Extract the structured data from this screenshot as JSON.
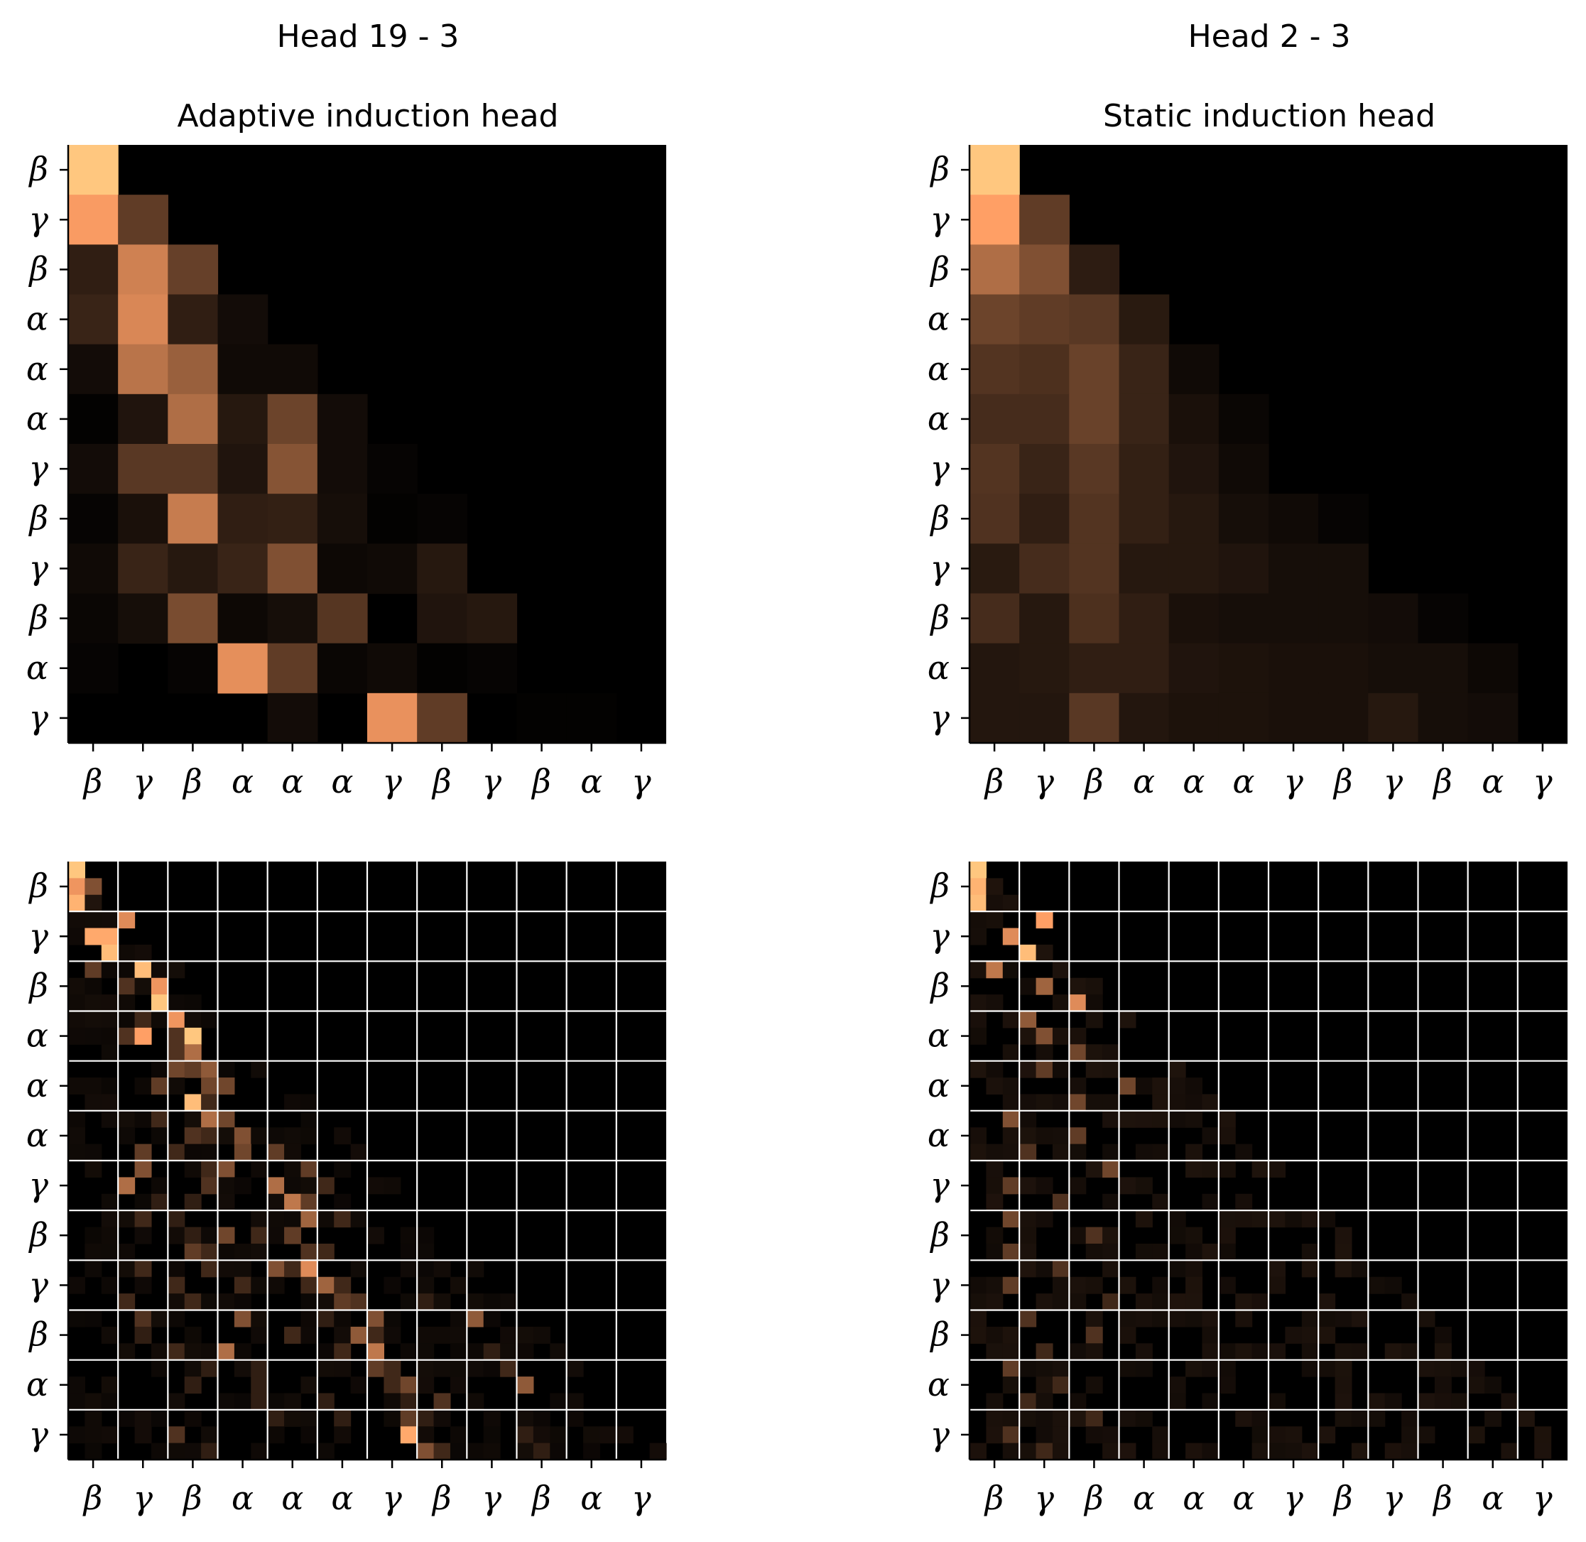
{
  "figure": {
    "colormap": "copper",
    "background": "#ffffff"
  },
  "chart_data": [
    {
      "type": "heatmap",
      "suptitle": "Head 19 - 3",
      "title": "Adaptive induction head",
      "xlabel": "",
      "ylabel": "",
      "x_tick_labels": [
        "β",
        "γ",
        "β",
        "α",
        "α",
        "α",
        "γ",
        "β",
        "γ",
        "β",
        "α",
        "γ"
      ],
      "y_tick_labels": [
        "β",
        "γ",
        "β",
        "α",
        "α",
        "α",
        "γ",
        "β",
        "γ",
        "β",
        "α",
        "γ"
      ],
      "vmin": 0,
      "vmax": 1,
      "values": [
        [
          1.0,
          0,
          0,
          0,
          0,
          0,
          0,
          0,
          0,
          0,
          0,
          0
        ],
        [
          0.78,
          0.3,
          0,
          0,
          0,
          0,
          0,
          0,
          0,
          0,
          0,
          0
        ],
        [
          0.15,
          0.65,
          0.32,
          0,
          0,
          0,
          0,
          0,
          0,
          0,
          0,
          0
        ],
        [
          0.18,
          0.68,
          0.15,
          0.06,
          0,
          0,
          0,
          0,
          0,
          0,
          0,
          0
        ],
        [
          0.06,
          0.58,
          0.48,
          0.05,
          0.05,
          0,
          0,
          0,
          0,
          0,
          0,
          0
        ],
        [
          0.01,
          0.1,
          0.55,
          0.12,
          0.34,
          0.06,
          0,
          0,
          0,
          0,
          0,
          0
        ],
        [
          0.06,
          0.28,
          0.28,
          0.1,
          0.42,
          0.06,
          0.02,
          0,
          0,
          0,
          0,
          0
        ],
        [
          0.02,
          0.08,
          0.62,
          0.15,
          0.16,
          0.07,
          0.01,
          0.02,
          0,
          0,
          0,
          0
        ],
        [
          0.05,
          0.18,
          0.12,
          0.18,
          0.4,
          0.04,
          0.05,
          0.12,
          0,
          0,
          0,
          0
        ],
        [
          0.03,
          0.07,
          0.38,
          0.04,
          0.07,
          0.27,
          0.0,
          0.1,
          0.12,
          0,
          0,
          0
        ],
        [
          0.02,
          0.0,
          0.02,
          0.72,
          0.3,
          0.03,
          0.05,
          0.01,
          0.02,
          0,
          0,
          0
        ],
        [
          0.0,
          0.0,
          0.0,
          0.0,
          0.06,
          0.0,
          0.73,
          0.3,
          0.0,
          0.01,
          0.01,
          0.0
        ]
      ]
    },
    {
      "type": "heatmap",
      "suptitle": "Head 2 - 3",
      "title": "Static induction head",
      "xlabel": "",
      "ylabel": "",
      "x_tick_labels": [
        "β",
        "γ",
        "β",
        "α",
        "α",
        "α",
        "γ",
        "β",
        "γ",
        "β",
        "α",
        "γ"
      ],
      "y_tick_labels": [
        "β",
        "γ",
        "β",
        "α",
        "α",
        "α",
        "γ",
        "β",
        "γ",
        "β",
        "α",
        "γ"
      ],
      "vmin": 0,
      "vmax": 1,
      "values": [
        [
          1.0,
          0,
          0,
          0,
          0,
          0,
          0,
          0,
          0,
          0,
          0,
          0
        ],
        [
          0.8,
          0.3,
          0,
          0,
          0,
          0,
          0,
          0,
          0,
          0,
          0,
          0
        ],
        [
          0.55,
          0.4,
          0.14,
          0,
          0,
          0,
          0,
          0,
          0,
          0,
          0,
          0
        ],
        [
          0.34,
          0.3,
          0.28,
          0.13,
          0,
          0,
          0,
          0,
          0,
          0,
          0,
          0
        ],
        [
          0.26,
          0.24,
          0.33,
          0.18,
          0.05,
          0,
          0,
          0,
          0,
          0,
          0,
          0
        ],
        [
          0.22,
          0.22,
          0.33,
          0.18,
          0.08,
          0.03,
          0,
          0,
          0,
          0,
          0,
          0
        ],
        [
          0.26,
          0.18,
          0.28,
          0.16,
          0.1,
          0.05,
          0,
          0,
          0,
          0,
          0,
          0
        ],
        [
          0.25,
          0.15,
          0.26,
          0.16,
          0.12,
          0.07,
          0.05,
          0.02,
          0,
          0,
          0,
          0
        ],
        [
          0.13,
          0.22,
          0.26,
          0.12,
          0.12,
          0.1,
          0.07,
          0.07,
          0,
          0,
          0,
          0
        ],
        [
          0.22,
          0.12,
          0.24,
          0.15,
          0.08,
          0.07,
          0.07,
          0.07,
          0.06,
          0.02,
          0,
          0
        ],
        [
          0.11,
          0.12,
          0.15,
          0.15,
          0.1,
          0.09,
          0.08,
          0.08,
          0.07,
          0.07,
          0.04,
          0
        ],
        [
          0.11,
          0.11,
          0.28,
          0.11,
          0.09,
          0.09,
          0.08,
          0.08,
          0.12,
          0.07,
          0.06,
          0.0
        ]
      ]
    },
    {
      "type": "heatmap",
      "title": "",
      "xlabel": "",
      "ylabel": "",
      "x_tick_labels": [
        "β",
        "γ",
        "β",
        "α",
        "α",
        "α",
        "γ",
        "β",
        "γ",
        "β",
        "α",
        "γ"
      ],
      "y_tick_labels": [
        "β",
        "γ",
        "β",
        "α",
        "α",
        "α",
        "γ",
        "β",
        "γ",
        "β",
        "α",
        "γ"
      ],
      "resolution": 36,
      "block_grid_every": 3,
      "vmin": 0,
      "vmax": 1,
      "peaks": [
        [
          0,
          0,
          1.0
        ],
        [
          1,
          0,
          0.75
        ],
        [
          1,
          1,
          0.4
        ],
        [
          2,
          0,
          0.9
        ],
        [
          2,
          1,
          0.1
        ],
        [
          3,
          3,
          0.7
        ],
        [
          4,
          1,
          0.85
        ],
        [
          4,
          2,
          0.1
        ],
        [
          5,
          2,
          0.95
        ],
        [
          6,
          1,
          0.3
        ],
        [
          6,
          4,
          0.35
        ],
        [
          7,
          3,
          0.25
        ],
        [
          7,
          5,
          0.75
        ],
        [
          8,
          5,
          1.0
        ],
        [
          9,
          4,
          0.2
        ],
        [
          9,
          6,
          0.45
        ],
        [
          10,
          3,
          0.25
        ],
        [
          10,
          4,
          0.8
        ],
        [
          10,
          6,
          0.25
        ],
        [
          11,
          6,
          0.25
        ],
        [
          11,
          7,
          0.55
        ],
        [
          12,
          6,
          0.35
        ],
        [
          12,
          7,
          0.3
        ],
        [
          13,
          5,
          0.3
        ],
        [
          13,
          8,
          0.35
        ],
        [
          14,
          7,
          0.95
        ],
        [
          14,
          8,
          0.2
        ],
        [
          15,
          5,
          0.2
        ],
        [
          15,
          9,
          0.35
        ],
        [
          16,
          7,
          0.25
        ],
        [
          16,
          8,
          0.2
        ],
        [
          17,
          4,
          0.3
        ],
        [
          17,
          6,
          0.2
        ],
        [
          17,
          12,
          0.3
        ],
        [
          18,
          4,
          0.4
        ],
        [
          18,
          8,
          0.2
        ],
        [
          18,
          14,
          0.3
        ],
        [
          19,
          3,
          0.55
        ],
        [
          19,
          8,
          0.25
        ],
        [
          19,
          12,
          0.2
        ],
        [
          19,
          15,
          0.2
        ],
        [
          20,
          5,
          0.15
        ],
        [
          20,
          7,
          0.15
        ],
        [
          20,
          14,
          0.3
        ],
        [
          21,
          4,
          0.2
        ],
        [
          21,
          6,
          0.15
        ],
        [
          21,
          16,
          0.2
        ],
        [
          22,
          7,
          0.15
        ],
        [
          22,
          9,
          0.35
        ],
        [
          22,
          11,
          0.2
        ],
        [
          23,
          7,
          0.3
        ],
        [
          23,
          8,
          0.2
        ],
        [
          23,
          15,
          0.2
        ],
        [
          24,
          4,
          0.2
        ],
        [
          24,
          8,
          0.2
        ],
        [
          24,
          12,
          0.4
        ],
        [
          24,
          13,
          0.2
        ],
        [
          25,
          6,
          0.2
        ],
        [
          25,
          10,
          0.2
        ],
        [
          25,
          14,
          0.2
        ],
        [
          25,
          16,
          0.2
        ],
        [
          26,
          3,
          0.2
        ],
        [
          26,
          7,
          0.2
        ],
        [
          26,
          17,
          0.25
        ],
        [
          26,
          21,
          0.15
        ],
        [
          27,
          4,
          0.25
        ],
        [
          27,
          10,
          0.4
        ],
        [
          27,
          15,
          0.15
        ],
        [
          27,
          24,
          0.45
        ],
        [
          28,
          4,
          0.15
        ],
        [
          28,
          13,
          0.2
        ],
        [
          28,
          18,
          0.2
        ],
        [
          29,
          6,
          0.2
        ],
        [
          29,
          9,
          0.55
        ],
        [
          29,
          16,
          0.2
        ],
        [
          29,
          25,
          0.15
        ],
        [
          30,
          8,
          0.15
        ],
        [
          30,
          11,
          0.15
        ],
        [
          30,
          19,
          0.2
        ],
        [
          30,
          26,
          0.2
        ],
        [
          31,
          7,
          0.15
        ],
        [
          31,
          11,
          0.15
        ],
        [
          31,
          19,
          0.2
        ],
        [
          31,
          27,
          0.45
        ],
        [
          32,
          11,
          0.15
        ],
        [
          32,
          15,
          0.15
        ],
        [
          32,
          20,
          0.15
        ],
        [
          33,
          12,
          0.15
        ],
        [
          33,
          16,
          0.15
        ],
        [
          33,
          21,
          0.15
        ],
        [
          34,
          6,
          0.25
        ],
        [
          34,
          20,
          0.2
        ],
        [
          34,
          27,
          0.15
        ],
        [
          35,
          8,
          0.15
        ],
        [
          35,
          22,
          0.2
        ],
        [
          35,
          28,
          0.15
        ],
        [
          36,
          10,
          0.25
        ],
        [
          36,
          22,
          0.15
        ],
        [
          36,
          29,
          0.15
        ],
        [
          37,
          1,
          0.15
        ],
        [
          37,
          11,
          0.15
        ],
        [
          37,
          23,
          0.2
        ],
        [
          38,
          2,
          0.15
        ],
        [
          38,
          9,
          0.2
        ],
        [
          38,
          24,
          0.15
        ],
        [
          38,
          30,
          0.15
        ],
        [
          39,
          14,
          0.15
        ],
        [
          39,
          25,
          0.15
        ],
        [
          40,
          11,
          0.15
        ],
        [
          40,
          24,
          0.15
        ],
        [
          40,
          31,
          0.15
        ]
      ],
      "diagonal_peaks": [
        [
          0,
          0,
          1.0
        ],
        [
          1,
          0,
          0.75
        ],
        [
          2,
          0,
          0.9
        ],
        [
          3,
          3,
          0.7
        ],
        [
          4,
          2,
          0.85
        ],
        [
          5,
          2,
          0.95
        ],
        [
          6,
          4,
          0.95
        ],
        [
          7,
          5,
          0.75
        ],
        [
          8,
          5,
          0.9
        ],
        [
          9,
          6,
          0.75
        ],
        [
          10,
          7,
          1.0
        ],
        [
          11,
          7,
          0.55
        ],
        [
          12,
          8,
          0.45
        ],
        [
          13,
          9,
          0.35
        ],
        [
          14,
          7,
          0.95
        ],
        [
          15,
          8,
          0.55
        ],
        [
          16,
          10,
          0.4
        ],
        [
          17,
          10,
          0.35
        ],
        [
          18,
          9,
          0.4
        ],
        [
          19,
          12,
          0.55
        ],
        [
          20,
          13,
          0.6
        ],
        [
          21,
          14,
          0.5
        ],
        [
          22,
          13,
          0.3
        ],
        [
          23,
          14,
          0.25
        ],
        [
          24,
          14,
          0.7
        ],
        [
          25,
          15,
          0.5
        ],
        [
          26,
          16,
          0.3
        ],
        [
          27,
          18,
          0.4
        ],
        [
          28,
          17,
          0.45
        ],
        [
          29,
          18,
          0.6
        ],
        [
          30,
          18,
          0.3
        ],
        [
          31,
          20,
          0.35
        ],
        [
          32,
          22,
          0.25
        ],
        [
          33,
          20,
          0.3
        ],
        [
          34,
          20,
          0.85
        ],
        [
          35,
          21,
          0.4
        ],
        [
          36,
          22,
          0.4
        ],
        [
          37,
          23,
          0.35
        ],
        [
          38,
          24,
          0.3
        ],
        [
          39,
          25,
          0.25
        ],
        [
          40,
          26,
          0.25
        ]
      ]
    },
    {
      "type": "heatmap",
      "title": "",
      "xlabel": "",
      "ylabel": "",
      "x_tick_labels": [
        "β",
        "γ",
        "β",
        "α",
        "α",
        "α",
        "γ",
        "β",
        "γ",
        "β",
        "α",
        "γ"
      ],
      "y_tick_labels": [
        "β",
        "γ",
        "β",
        "α",
        "α",
        "α",
        "γ",
        "β",
        "γ",
        "β",
        "α",
        "γ"
      ],
      "resolution": 36,
      "block_grid_every": 3,
      "vmin": 0,
      "vmax": 1,
      "diagonal_peaks": [
        [
          0,
          0,
          1.0
        ],
        [
          1,
          0,
          0.9
        ],
        [
          2,
          0,
          0.95
        ],
        [
          3,
          4,
          0.8
        ],
        [
          4,
          2,
          0.7
        ],
        [
          5,
          3,
          0.95
        ],
        [
          6,
          1,
          0.6
        ],
        [
          7,
          4,
          0.5
        ],
        [
          8,
          6,
          0.7
        ],
        [
          9,
          3,
          0.45
        ],
        [
          10,
          4,
          0.4
        ],
        [
          11,
          6,
          0.35
        ],
        [
          12,
          4,
          0.3
        ],
        [
          13,
          9,
          0.35
        ],
        [
          14,
          6,
          0.35
        ],
        [
          15,
          2,
          0.4
        ],
        [
          16,
          6,
          0.3
        ],
        [
          17,
          3,
          0.25
        ],
        [
          18,
          8,
          0.35
        ],
        [
          19,
          2,
          0.3
        ],
        [
          20,
          5,
          0.25
        ],
        [
          21,
          2,
          0.35
        ],
        [
          22,
          7,
          0.25
        ],
        [
          23,
          2,
          0.3
        ],
        [
          24,
          5,
          0.25
        ],
        [
          25,
          2,
          0.3
        ],
        [
          26,
          8,
          0.2
        ],
        [
          27,
          3,
          0.25
        ],
        [
          28,
          7,
          0.25
        ],
        [
          29,
          4,
          0.2
        ],
        [
          30,
          2,
          0.3
        ],
        [
          31,
          5,
          0.2
        ],
        [
          32,
          3,
          0.2
        ],
        [
          33,
          7,
          0.2
        ],
        [
          34,
          2,
          0.25
        ],
        [
          35,
          4,
          0.2
        ],
        [
          36,
          6,
          0.2
        ],
        [
          37,
          3,
          0.15
        ],
        [
          38,
          7,
          0.2
        ],
        [
          39,
          2,
          0.2
        ],
        [
          40,
          6,
          0.2
        ]
      ],
      "background_level": 0.06
    }
  ]
}
